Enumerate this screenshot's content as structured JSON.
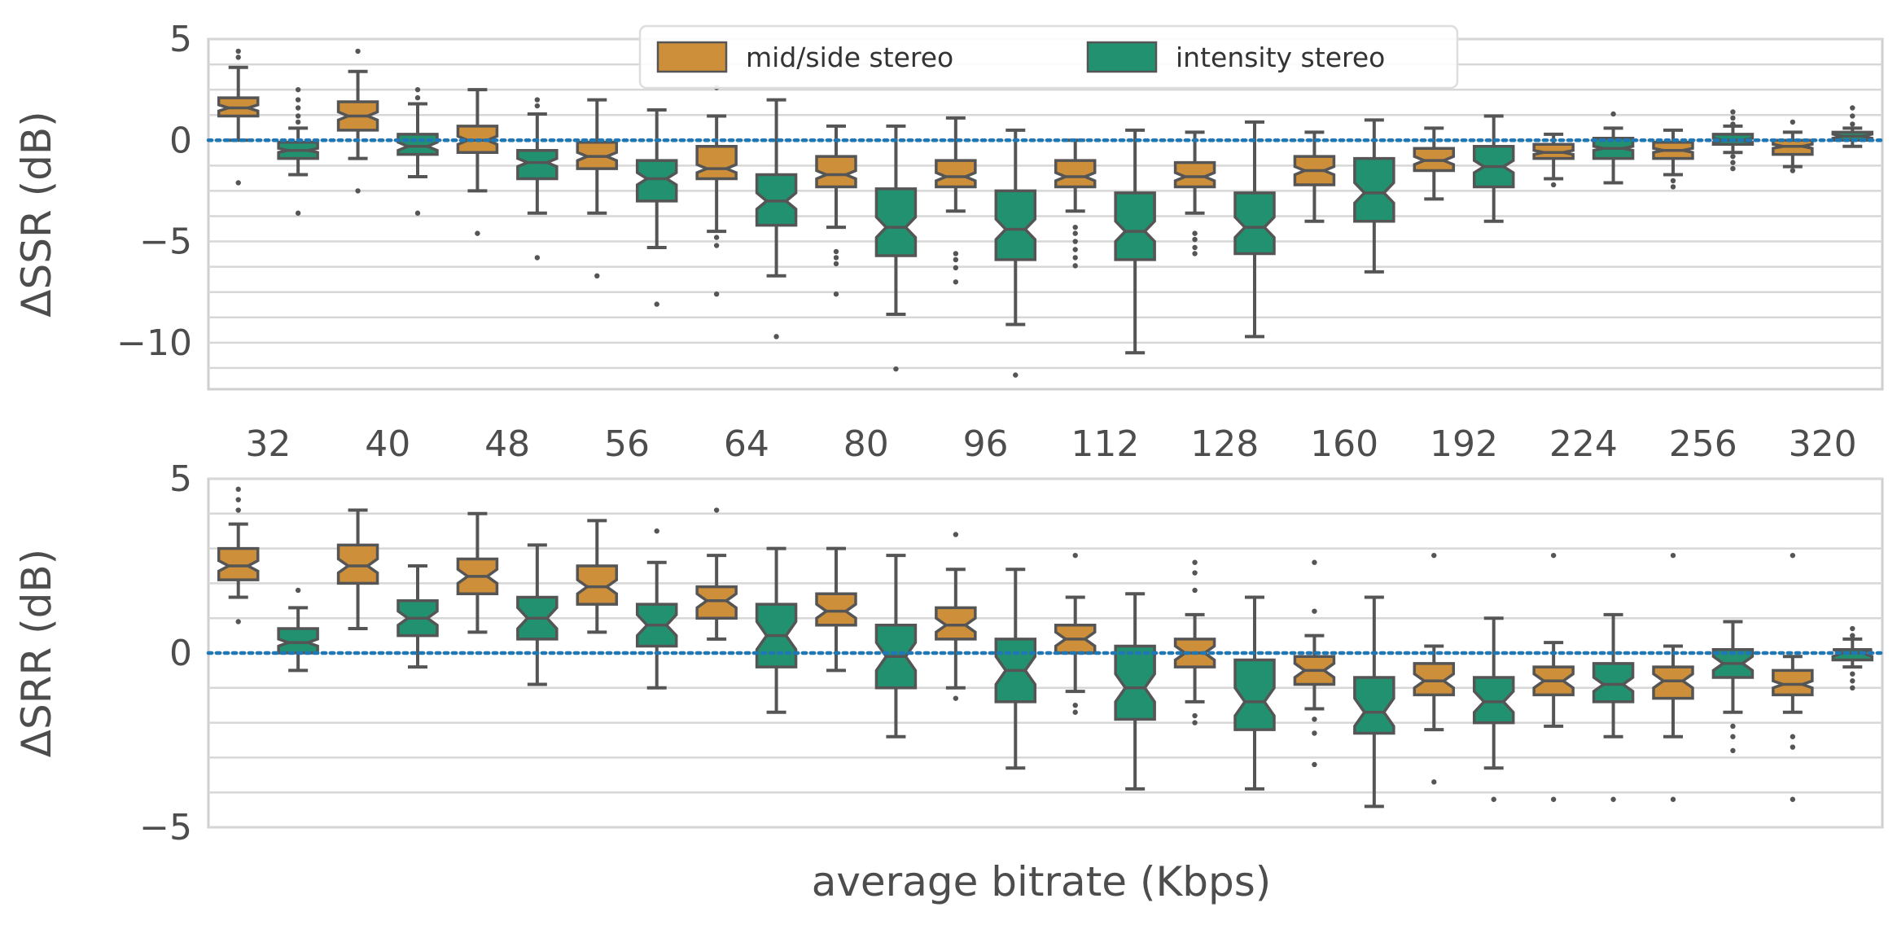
{
  "chart_data": [
    {
      "type": "box",
      "ylabel": "ΔSSR (dB)",
      "ylim": [
        -12.3,
        5
      ],
      "yticks": [
        {
          "value": 5,
          "label": "5"
        },
        {
          "value": 0,
          "label": "0"
        },
        {
          "value": -5,
          "label": "−5"
        },
        {
          "value": -10,
          "label": "−10"
        }
      ],
      "grid": true,
      "reference_line": 0,
      "categories": [
        "32",
        "40",
        "48",
        "56",
        "64",
        "80",
        "96",
        "112",
        "128",
        "160",
        "192",
        "224",
        "256",
        "320"
      ],
      "series": [
        {
          "name": "mid/side stereo",
          "color": "#cd8f3a",
          "boxes": [
            {
              "q1": 1.2,
              "median": 1.6,
              "q3": 2.1,
              "notch_lo": 1.45,
              "notch_hi": 1.75,
              "whislo": 0.0,
              "whishi": 3.6,
              "fliers": [
                4.4,
                4.1,
                -2.1
              ]
            },
            {
              "q1": 0.5,
              "median": 1.2,
              "q3": 1.9,
              "notch_lo": 1.0,
              "notch_hi": 1.4,
              "whislo": -0.9,
              "whishi": 3.4,
              "fliers": [
                4.4,
                -2.5
              ]
            },
            {
              "q1": -0.6,
              "median": 0.0,
              "q3": 0.7,
              "notch_lo": -0.2,
              "notch_hi": 0.2,
              "whislo": -2.5,
              "whishi": 2.5,
              "fliers": [
                -4.6
              ]
            },
            {
              "q1": -1.4,
              "median": -0.8,
              "q3": -0.1,
              "notch_lo": -1.0,
              "notch_hi": -0.6,
              "whislo": -3.6,
              "whishi": 2.0,
              "fliers": [
                -6.7
              ]
            },
            {
              "q1": -1.9,
              "median": -1.4,
              "q3": -0.3,
              "notch_lo": -1.6,
              "notch_hi": -1.2,
              "whislo": -4.5,
              "whishi": 1.2,
              "fliers": [
                2.6,
                -4.8,
                -5.2,
                -7.6
              ]
            },
            {
              "q1": -2.3,
              "median": -1.7,
              "q3": -0.8,
              "notch_lo": -1.9,
              "notch_hi": -1.5,
              "whislo": -4.3,
              "whishi": 0.7,
              "fliers": [
                -5.5,
                -5.8,
                -6.1,
                -7.6
              ]
            },
            {
              "q1": -2.3,
              "median": -1.8,
              "q3": -1.0,
              "notch_lo": -2.0,
              "notch_hi": -1.6,
              "whislo": -3.5,
              "whishi": 1.1,
              "fliers": [
                -5.6,
                -5.9,
                -6.3,
                -7.0
              ]
            },
            {
              "q1": -2.3,
              "median": -1.8,
              "q3": -1.0,
              "notch_lo": -2.0,
              "notch_hi": -1.6,
              "whislo": -3.5,
              "whishi": 0.0,
              "fliers": [
                -4.3,
                -4.6,
                -5.0,
                -5.4,
                -5.8,
                -6.2
              ]
            },
            {
              "q1": -2.3,
              "median": -1.8,
              "q3": -1.1,
              "notch_lo": -2.0,
              "notch_hi": -1.6,
              "whislo": -3.6,
              "whishi": 0.4,
              "fliers": [
                -4.6,
                -4.9,
                -5.3,
                -5.6
              ]
            },
            {
              "q1": -2.2,
              "median": -1.5,
              "q3": -0.8,
              "notch_lo": -1.7,
              "notch_hi": -1.3,
              "whislo": -4.0,
              "whishi": 0.4,
              "fliers": []
            },
            {
              "q1": -1.5,
              "median": -1.0,
              "q3": -0.4,
              "notch_lo": -1.2,
              "notch_hi": -0.8,
              "whislo": -2.9,
              "whishi": 0.6,
              "fliers": []
            },
            {
              "q1": -0.9,
              "median": -0.6,
              "q3": -0.2,
              "notch_lo": -0.7,
              "notch_hi": -0.5,
              "whislo": -1.9,
              "whishi": 0.3,
              "fliers": [
                -2.2
              ]
            },
            {
              "q1": -0.9,
              "median": -0.5,
              "q3": -0.1,
              "notch_lo": -0.6,
              "notch_hi": -0.4,
              "whislo": -1.7,
              "whishi": 0.5,
              "fliers": [
                -2.0,
                -2.3
              ]
            },
            {
              "q1": -0.7,
              "median": -0.3,
              "q3": 0.0,
              "notch_lo": -0.4,
              "notch_hi": -0.2,
              "whislo": -1.3,
              "whishi": 0.4,
              "fliers": [
                -1.5,
                0.9
              ]
            }
          ]
        },
        {
          "name": "intensity stereo",
          "color": "#229170",
          "boxes": [
            {
              "q1": -0.9,
              "median": -0.5,
              "q3": -0.1,
              "notch_lo": -0.6,
              "notch_hi": -0.4,
              "whislo": -1.7,
              "whishi": 0.6,
              "fliers": [
                0.9,
                1.2,
                1.6,
                2.0,
                2.5,
                -3.6
              ]
            },
            {
              "q1": -0.7,
              "median": -0.3,
              "q3": 0.3,
              "notch_lo": -0.5,
              "notch_hi": -0.1,
              "whislo": -1.8,
              "whishi": 1.8,
              "fliers": [
                2.1,
                2.5,
                -3.6
              ]
            },
            {
              "q1": -1.9,
              "median": -1.1,
              "q3": -0.5,
              "notch_lo": -1.3,
              "notch_hi": -0.9,
              "whislo": -3.6,
              "whishi": 1.3,
              "fliers": [
                1.7,
                2.0,
                -5.8
              ]
            },
            {
              "q1": -3.0,
              "median": -1.9,
              "q3": -1.0,
              "notch_lo": -2.2,
              "notch_hi": -1.6,
              "whislo": -5.3,
              "whishi": 1.5,
              "fliers": [
                -8.1
              ]
            },
            {
              "q1": -4.2,
              "median": -3.0,
              "q3": -1.7,
              "notch_lo": -3.4,
              "notch_hi": -2.6,
              "whislo": -6.7,
              "whishi": 2.0,
              "fliers": [
                -9.7
              ]
            },
            {
              "q1": -5.7,
              "median": -4.3,
              "q3": -2.4,
              "notch_lo": -4.8,
              "notch_hi": -3.8,
              "whislo": -8.6,
              "whishi": 0.7,
              "fliers": [
                -11.3
              ]
            },
            {
              "q1": -5.9,
              "median": -4.4,
              "q3": -2.5,
              "notch_lo": -4.9,
              "notch_hi": -3.9,
              "whislo": -9.1,
              "whishi": 0.5,
              "fliers": [
                -11.6
              ]
            },
            {
              "q1": -5.9,
              "median": -4.5,
              "q3": -2.6,
              "notch_lo": -5.0,
              "notch_hi": -4.0,
              "whislo": -10.5,
              "whishi": 0.5,
              "fliers": []
            },
            {
              "q1": -5.6,
              "median": -4.3,
              "q3": -2.6,
              "notch_lo": -4.8,
              "notch_hi": -3.8,
              "whislo": -9.7,
              "whishi": 0.9,
              "fliers": []
            },
            {
              "q1": -4.0,
              "median": -2.6,
              "q3": -0.9,
              "notch_lo": -3.1,
              "notch_hi": -2.1,
              "whislo": -6.5,
              "whishi": 1.0,
              "fliers": []
            },
            {
              "q1": -2.3,
              "median": -1.3,
              "q3": -0.3,
              "notch_lo": -1.6,
              "notch_hi": -1.0,
              "whislo": -4.0,
              "whishi": 1.2,
              "fliers": []
            },
            {
              "q1": -0.9,
              "median": -0.4,
              "q3": 0.1,
              "notch_lo": -0.5,
              "notch_hi": -0.3,
              "whislo": -2.1,
              "whishi": 0.6,
              "fliers": [
                1.3
              ]
            },
            {
              "q1": -0.2,
              "median": 0.0,
              "q3": 0.3,
              "notch_lo": -0.1,
              "notch_hi": 0.1,
              "whislo": -0.6,
              "whishi": 0.7,
              "fliers": [
                1.4,
                1.1,
                0.8,
                -0.8,
                -1.1,
                -1.4
              ]
            },
            {
              "q1": 0.0,
              "median": 0.2,
              "q3": 0.4,
              "notch_lo": 0.1,
              "notch_hi": 0.3,
              "whislo": -0.3,
              "whishi": 0.6,
              "fliers": [
                0.8,
                1.2,
                1.6
              ]
            }
          ]
        }
      ]
    },
    {
      "type": "box",
      "ylabel": "ΔSRR (dB)",
      "xlabel": "average bitrate (Kbps)",
      "ylim": [
        -5,
        5
      ],
      "yticks": [
        {
          "value": 5,
          "label": "5"
        },
        {
          "value": 0,
          "label": "0"
        },
        {
          "value": -5,
          "label": "−5"
        }
      ],
      "grid": true,
      "reference_line": 0,
      "categories": [
        "32",
        "40",
        "48",
        "56",
        "64",
        "80",
        "96",
        "112",
        "128",
        "160",
        "192",
        "224",
        "256",
        "320"
      ],
      "series": [
        {
          "name": "mid/side stereo",
          "color": "#cd8f3a",
          "boxes": [
            {
              "q1": 2.1,
              "median": 2.5,
              "q3": 3.0,
              "notch_lo": 2.35,
              "notch_hi": 2.65,
              "whislo": 1.6,
              "whishi": 3.7,
              "fliers": [
                4.1,
                4.4,
                4.7,
                0.9
              ]
            },
            {
              "q1": 2.0,
              "median": 2.5,
              "q3": 3.1,
              "notch_lo": 2.3,
              "notch_hi": 2.7,
              "whislo": 0.7,
              "whishi": 4.1,
              "fliers": []
            },
            {
              "q1": 1.7,
              "median": 2.2,
              "q3": 2.7,
              "notch_lo": 2.0,
              "notch_hi": 2.4,
              "whislo": 0.6,
              "whishi": 4.0,
              "fliers": []
            },
            {
              "q1": 1.4,
              "median": 1.9,
              "q3": 2.5,
              "notch_lo": 1.7,
              "notch_hi": 2.1,
              "whislo": 0.6,
              "whishi": 3.8,
              "fliers": []
            },
            {
              "q1": 1.0,
              "median": 1.5,
              "q3": 1.9,
              "notch_lo": 1.3,
              "notch_hi": 1.7,
              "whislo": 0.4,
              "whishi": 2.8,
              "fliers": [
                4.1
              ]
            },
            {
              "q1": 0.8,
              "median": 1.2,
              "q3": 1.7,
              "notch_lo": 1.0,
              "notch_hi": 1.4,
              "whislo": -0.5,
              "whishi": 3.0,
              "fliers": []
            },
            {
              "q1": 0.4,
              "median": 0.8,
              "q3": 1.3,
              "notch_lo": 0.6,
              "notch_hi": 1.0,
              "whislo": -1.0,
              "whishi": 2.4,
              "fliers": [
                3.4,
                -1.3
              ]
            },
            {
              "q1": 0.0,
              "median": 0.4,
              "q3": 0.8,
              "notch_lo": 0.2,
              "notch_hi": 0.6,
              "whislo": -1.1,
              "whishi": 1.6,
              "fliers": [
                2.8,
                -1.5,
                -1.7
              ]
            },
            {
              "q1": -0.4,
              "median": 0.0,
              "q3": 0.4,
              "notch_lo": -0.2,
              "notch_hi": 0.2,
              "whislo": -1.4,
              "whishi": 1.1,
              "fliers": [
                2.6,
                2.3,
                1.8,
                -1.8,
                -2.0
              ]
            },
            {
              "q1": -0.9,
              "median": -0.5,
              "q3": -0.1,
              "notch_lo": -0.7,
              "notch_hi": -0.3,
              "whislo": -1.6,
              "whishi": 0.5,
              "fliers": [
                2.6,
                1.2,
                -1.9,
                -2.3,
                -3.2
              ]
            },
            {
              "q1": -1.2,
              "median": -0.8,
              "q3": -0.3,
              "notch_lo": -1.0,
              "notch_hi": -0.6,
              "whislo": -2.2,
              "whishi": 0.2,
              "fliers": [
                2.8,
                -3.7
              ]
            },
            {
              "q1": -1.2,
              "median": -0.8,
              "q3": -0.4,
              "notch_lo": -1.0,
              "notch_hi": -0.6,
              "whislo": -2.1,
              "whishi": 0.3,
              "fliers": [
                2.8,
                -4.2
              ]
            },
            {
              "q1": -1.3,
              "median": -0.8,
              "q3": -0.4,
              "notch_lo": -1.0,
              "notch_hi": -0.6,
              "whislo": -2.4,
              "whishi": 0.2,
              "fliers": [
                2.8,
                -4.2
              ]
            },
            {
              "q1": -1.2,
              "median": -0.9,
              "q3": -0.5,
              "notch_lo": -1.0,
              "notch_hi": -0.8,
              "whislo": -1.7,
              "whishi": -0.1,
              "fliers": [
                2.8,
                -2.4,
                -2.7,
                -4.2
              ]
            }
          ]
        },
        {
          "name": "intensity stereo",
          "color": "#229170",
          "boxes": [
            {
              "q1": 0.0,
              "median": 0.3,
              "q3": 0.7,
              "notch_lo": 0.2,
              "notch_hi": 0.4,
              "whislo": -0.5,
              "whishi": 1.3,
              "fliers": [
                1.8
              ]
            },
            {
              "q1": 0.5,
              "median": 1.0,
              "q3": 1.5,
              "notch_lo": 0.8,
              "notch_hi": 1.2,
              "whislo": -0.4,
              "whishi": 2.5,
              "fliers": []
            },
            {
              "q1": 0.4,
              "median": 1.0,
              "q3": 1.6,
              "notch_lo": 0.7,
              "notch_hi": 1.3,
              "whislo": -0.9,
              "whishi": 3.1,
              "fliers": []
            },
            {
              "q1": 0.2,
              "median": 0.8,
              "q3": 1.4,
              "notch_lo": 0.5,
              "notch_hi": 1.1,
              "whislo": -1.0,
              "whishi": 2.6,
              "fliers": [
                3.5
              ]
            },
            {
              "q1": -0.4,
              "median": 0.5,
              "q3": 1.4,
              "notch_lo": 0.1,
              "notch_hi": 0.9,
              "whislo": -1.7,
              "whishi": 3.0,
              "fliers": []
            },
            {
              "q1": -1.0,
              "median": -0.1,
              "q3": 0.8,
              "notch_lo": -0.5,
              "notch_hi": 0.3,
              "whislo": -2.4,
              "whishi": 2.8,
              "fliers": []
            },
            {
              "q1": -1.4,
              "median": -0.5,
              "q3": 0.4,
              "notch_lo": -0.9,
              "notch_hi": -0.1,
              "whislo": -3.3,
              "whishi": 2.4,
              "fliers": []
            },
            {
              "q1": -1.9,
              "median": -1.0,
              "q3": 0.2,
              "notch_lo": -1.4,
              "notch_hi": -0.6,
              "whislo": -3.9,
              "whishi": 1.7,
              "fliers": []
            },
            {
              "q1": -2.2,
              "median": -1.4,
              "q3": -0.2,
              "notch_lo": -1.8,
              "notch_hi": -1.0,
              "whislo": -3.9,
              "whishi": 1.6,
              "fliers": []
            },
            {
              "q1": -2.3,
              "median": -1.7,
              "q3": -0.7,
              "notch_lo": -2.1,
              "notch_hi": -1.3,
              "whislo": -4.4,
              "whishi": 1.6,
              "fliers": []
            },
            {
              "q1": -2.0,
              "median": -1.4,
              "q3": -0.7,
              "notch_lo": -1.7,
              "notch_hi": -1.1,
              "whislo": -3.3,
              "whishi": 1.0,
              "fliers": [
                -4.2
              ]
            },
            {
              "q1": -1.4,
              "median": -0.9,
              "q3": -0.3,
              "notch_lo": -1.1,
              "notch_hi": -0.7,
              "whislo": -2.4,
              "whishi": 1.1,
              "fliers": [
                -4.2
              ]
            },
            {
              "q1": -0.7,
              "median": -0.3,
              "q3": 0.1,
              "notch_lo": -0.5,
              "notch_hi": -0.1,
              "whislo": -1.7,
              "whishi": 0.9,
              "fliers": [
                -2.1,
                -2.4,
                -2.8
              ]
            },
            {
              "q1": -0.2,
              "median": 0.0,
              "q3": 0.1,
              "notch_lo": -0.1,
              "notch_hi": 0.1,
              "whislo": -0.4,
              "whishi": 0.4,
              "fliers": [
                0.7,
                0.5,
                -0.6,
                -0.8,
                -1.0
              ]
            }
          ]
        }
      ]
    }
  ],
  "legend": {
    "placement": "top-center",
    "items": [
      {
        "label": "mid/side stereo",
        "color": "#cd8f3a"
      },
      {
        "label": "intensity stereo",
        "color": "#229170"
      }
    ]
  },
  "style": {
    "grid_color": "#d7d7d7",
    "frame_color": "#cfcfcf",
    "whisker_color": "#555555",
    "reference_line_color": "#1f77b4"
  }
}
